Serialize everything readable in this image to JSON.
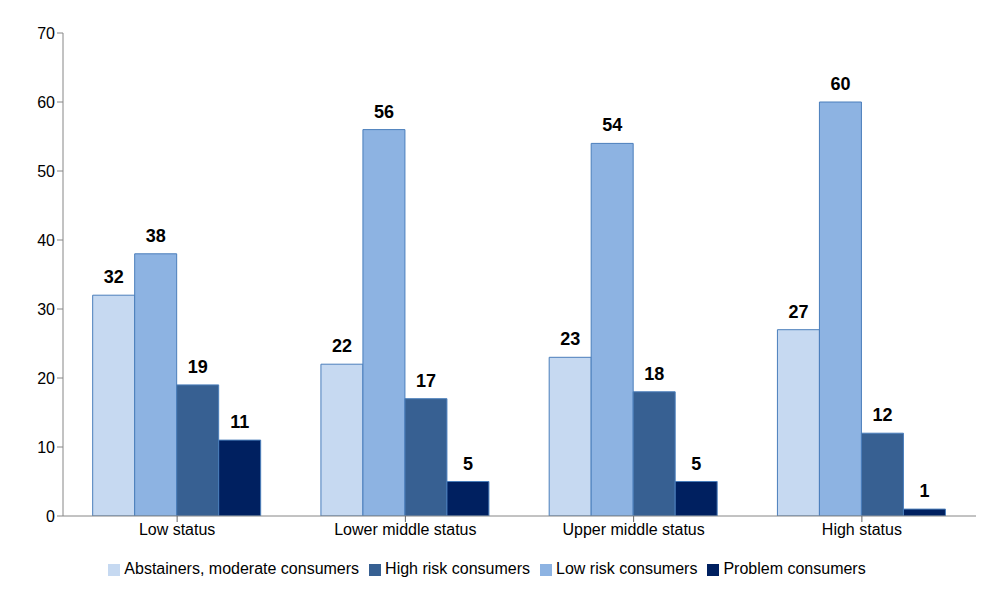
{
  "chart_data": {
    "type": "bar",
    "categories": [
      "Low status",
      "Lower middle status",
      "Upper middle status",
      "High status"
    ],
    "series": [
      {
        "name": "Abstainers, moderate consumers",
        "color": "#c6d9f1",
        "values": [
          32,
          22,
          23,
          27
        ]
      },
      {
        "name": "Low risk consumers",
        "color": "#8db3e2",
        "values": [
          38,
          56,
          54,
          60
        ]
      },
      {
        "name": "High risk consumers",
        "color": "#376092",
        "values": [
          19,
          17,
          18,
          12
        ]
      },
      {
        "name": "Problem consumers",
        "color": "#002060",
        "values": [
          11,
          5,
          5,
          1
        ]
      }
    ],
    "ylim": [
      0,
      70
    ],
    "yticks": [
      0,
      10,
      20,
      30,
      40,
      50,
      60,
      70
    ],
    "grid": false,
    "data_labels": true,
    "legend": "bottom"
  }
}
